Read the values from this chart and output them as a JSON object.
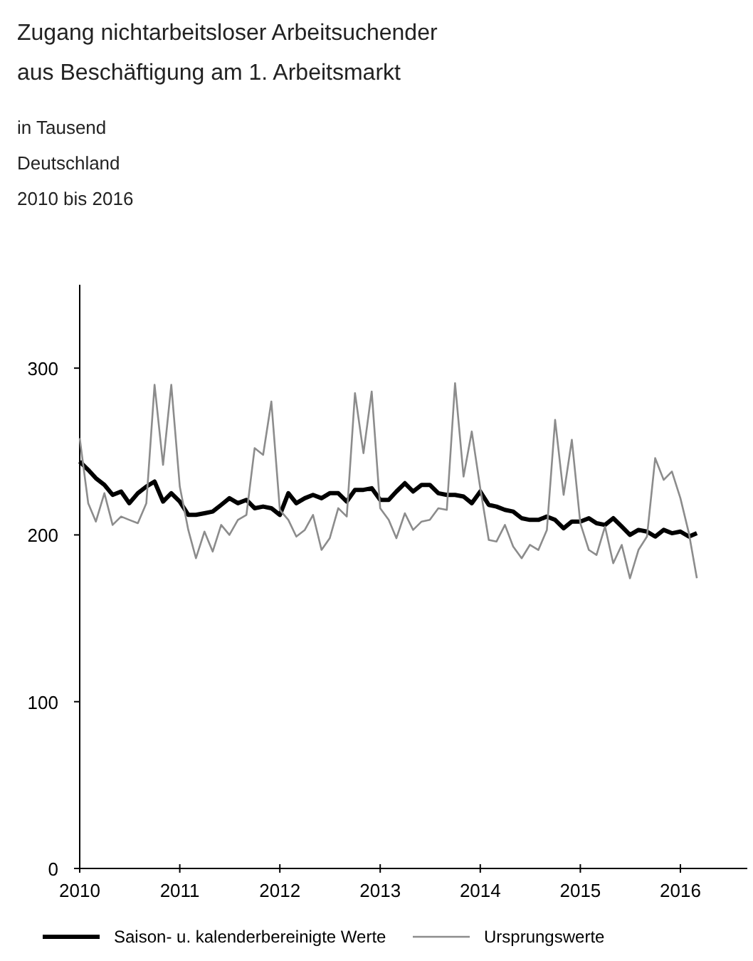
{
  "chart_data": {
    "type": "line",
    "title": "Zugang nichtarbeitsloser Arbeitsuchender aus Beschäftigung am 1. Arbeitsmarkt",
    "subtitle": "in Tausend\nDeutschland\n2010 bis 2016",
    "x": [
      "2010-01",
      "2010-02",
      "2010-03",
      "2010-04",
      "2010-05",
      "2010-06",
      "2010-07",
      "2010-08",
      "2010-09",
      "2010-10",
      "2010-11",
      "2010-12",
      "2011-01",
      "2011-02",
      "2011-03",
      "2011-04",
      "2011-05",
      "2011-06",
      "2011-07",
      "2011-08",
      "2011-09",
      "2011-10",
      "2011-11",
      "2011-12",
      "2012-01",
      "2012-02",
      "2012-03",
      "2012-04",
      "2012-05",
      "2012-06",
      "2012-07",
      "2012-08",
      "2012-09",
      "2012-10",
      "2012-11",
      "2012-12",
      "2013-01",
      "2013-02",
      "2013-03",
      "2013-04",
      "2013-05",
      "2013-06",
      "2013-07",
      "2013-08",
      "2013-09",
      "2013-10",
      "2013-11",
      "2013-12",
      "2014-01",
      "2014-02",
      "2014-03",
      "2014-04",
      "2014-05",
      "2014-06",
      "2014-07",
      "2014-08",
      "2014-09",
      "2014-10",
      "2014-11",
      "2014-12",
      "2015-01",
      "2015-02",
      "2015-03",
      "2015-04",
      "2015-05",
      "2015-06",
      "2015-07",
      "2015-08",
      "2015-09",
      "2015-10",
      "2015-11",
      "2015-12",
      "2016-01",
      "2016-02",
      "2016-03"
    ],
    "series": [
      {
        "name": "Saison- u. kalenderbereinigte Werte",
        "color": "#000000",
        "values": [
          244,
          239,
          234,
          230,
          224,
          226,
          219,
          225,
          229,
          232,
          220,
          225,
          220,
          212,
          212,
          213,
          214,
          218,
          222,
          219,
          221,
          216,
          217,
          216,
          212,
          225,
          219,
          222,
          224,
          222,
          225,
          225,
          220,
          227,
          227,
          228,
          221,
          221,
          226,
          231,
          226,
          230,
          230,
          225,
          224,
          224,
          223,
          219,
          226,
          218,
          217,
          215,
          214,
          210,
          209,
          209,
          211,
          209,
          204,
          208,
          208,
          210,
          207,
          206,
          210,
          205,
          200,
          203,
          202,
          199,
          203,
          201,
          202,
          199,
          201
        ]
      },
      {
        "name": "Ursprungswerte",
        "color": "#8c8c8c",
        "values": [
          258,
          219,
          208,
          225,
          206,
          211,
          209,
          207,
          219,
          290,
          242,
          290,
          229,
          203,
          186,
          202,
          190,
          206,
          200,
          209,
          212,
          252,
          248,
          280,
          215,
          209,
          199,
          203,
          212,
          191,
          198,
          216,
          211,
          285,
          249,
          286,
          216,
          209,
          198,
          213,
          203,
          208,
          209,
          216,
          215,
          291,
          235,
          262,
          228,
          197,
          196,
          206,
          193,
          186,
          194,
          191,
          203,
          269,
          224,
          257,
          207,
          191,
          188,
          205,
          183,
          194,
          174,
          191,
          199,
          246,
          233,
          238,
          222,
          201,
          174
        ]
      }
    ],
    "xlim": [
      "2010-01",
      "2016-09"
    ],
    "xticks": [
      "2010",
      "2011",
      "2012",
      "2013",
      "2014",
      "2015",
      "2016"
    ],
    "ylim": [
      0,
      350
    ],
    "yticks": [
      0,
      100,
      200,
      300
    ],
    "grid": false,
    "legend": "bottom",
    "marker": "none",
    "line_style": "solid"
  }
}
